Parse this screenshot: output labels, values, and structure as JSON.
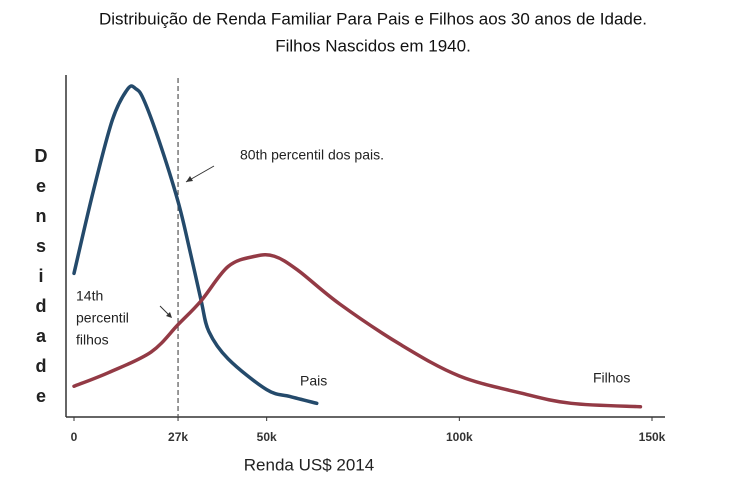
{
  "chart_data": {
    "type": "line",
    "title": "Distribuição de Renda Familiar Para Pais e Filhos aos 30 anos de Idade.",
    "subtitle": "Filhos Nascidos em 1940.",
    "xlabel": "Renda US$ 2014",
    "ylabel": "Densidade",
    "xlim": [
      0,
      150000
    ],
    "ylim": [
      0,
      1
    ],
    "xticks": [
      0,
      {
        "value": 27000,
        "label": "27k"
      },
      {
        "value": 50000,
        "label": "50k"
      },
      {
        "value": 100000,
        "label": "100k"
      },
      {
        "value": 150000,
        "label": "150k"
      }
    ],
    "vline": 27000,
    "series": [
      {
        "name": "Pais",
        "color": "#244a6b",
        "x": [
          0,
          5000,
          10000,
          14000,
          16000,
          18000,
          22000,
          27000,
          30000,
          33000,
          35000,
          40000,
          50000,
          56000,
          63000
        ],
        "values": [
          0.42,
          0.66,
          0.87,
          0.96,
          0.96,
          0.93,
          0.81,
          0.63,
          0.49,
          0.34,
          0.25,
          0.17,
          0.08,
          0.06,
          0.04
        ]
      },
      {
        "name": "Filhos",
        "color": "#933a45",
        "x": [
          0,
          9000,
          20000,
          27000,
          33000,
          40000,
          47000,
          52000,
          58000,
          69000,
          85000,
          100000,
          116000,
          129000,
          147000
        ],
        "values": [
          0.09,
          0.13,
          0.19,
          0.27,
          0.34,
          0.44,
          0.47,
          0.47,
          0.43,
          0.33,
          0.21,
          0.12,
          0.07,
          0.04,
          0.03
        ]
      }
    ],
    "annotations": [
      {
        "text": "80th percentil dos pais."
      },
      {
        "lines": [
          "14th",
          "percentil",
          "filhos"
        ]
      }
    ]
  }
}
